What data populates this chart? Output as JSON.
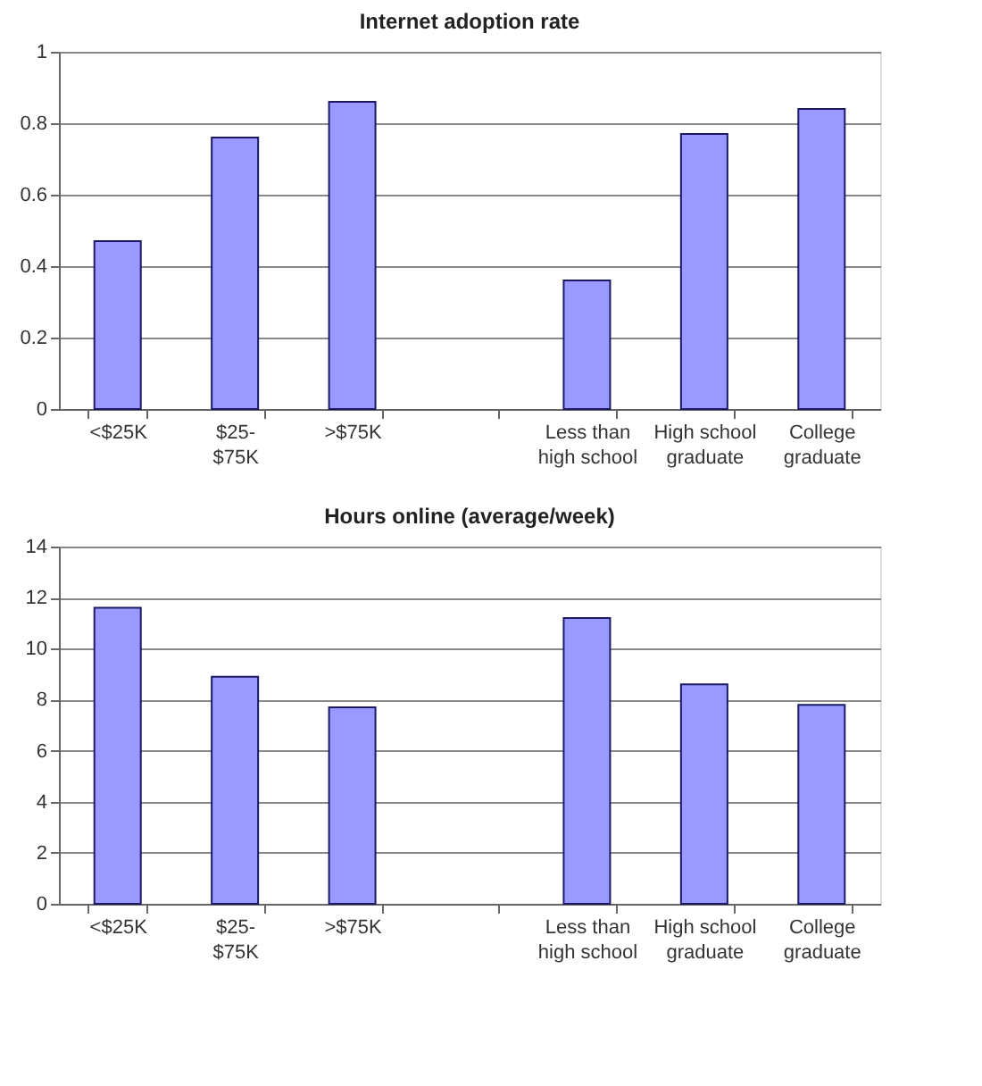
{
  "chart_data": [
    {
      "type": "bar",
      "title": "Internet adoption rate",
      "categories": [
        "<$25K",
        "$25-$75K",
        ">$75K",
        null,
        "Less than high school",
        "High school graduate",
        "College graduate"
      ],
      "values": [
        0.47,
        0.76,
        0.86,
        null,
        0.36,
        0.77,
        0.84
      ],
      "color": "#9999ff",
      "ylim": [
        0,
        1
      ],
      "yticks": [
        0,
        0.2,
        0.4,
        0.6,
        0.8,
        1
      ],
      "grid": "y"
    },
    {
      "type": "bar",
      "title": "Hours online (average/week)",
      "categories": [
        "<$25K",
        "$25-$75K",
        ">$75K",
        null,
        "Less than high school",
        "High school graduate",
        "College graduate"
      ],
      "values": [
        11.6,
        8.9,
        7.7,
        null,
        11.2,
        8.6,
        7.8
      ],
      "color": "#9999ff",
      "ylim": [
        0,
        14
      ],
      "yticks": [
        0,
        2,
        4,
        6,
        8,
        10,
        12,
        14
      ],
      "grid": "y"
    }
  ]
}
